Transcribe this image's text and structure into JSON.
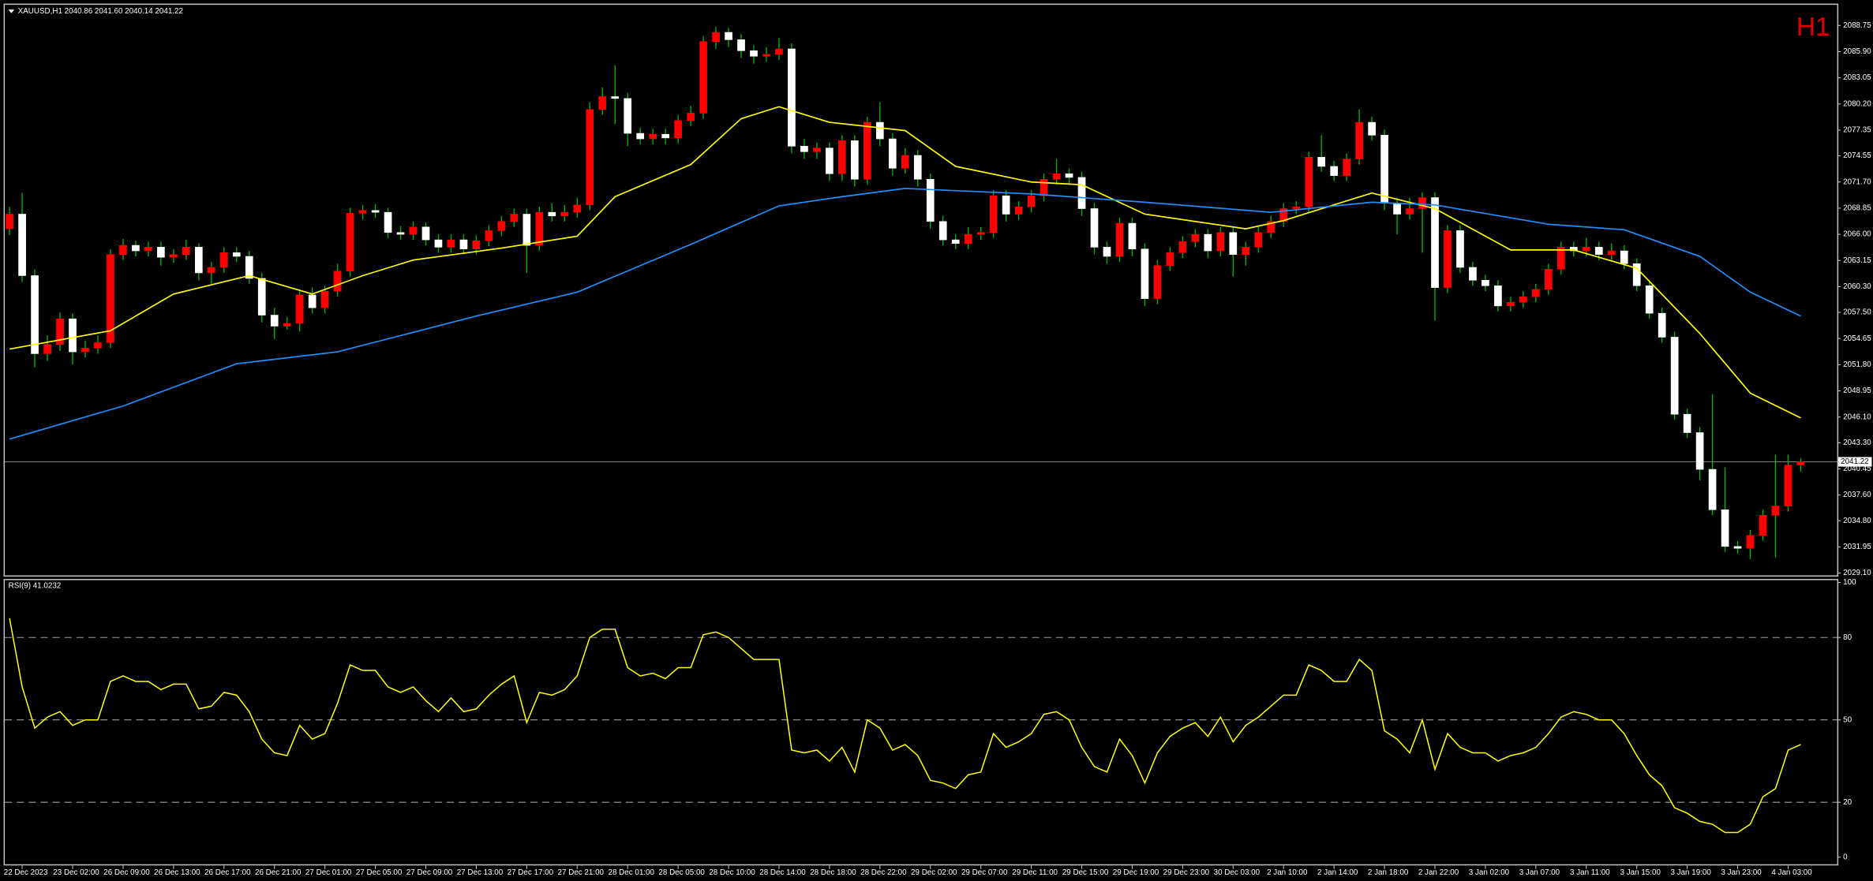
{
  "chart_data": {
    "type": "candlestick",
    "title": "XAUUSD,H1 2040.86 2041.60 2040.14 2041.22",
    "timeframe": "H1",
    "up_color": "#ff0000",
    "down_color": "#ffffff",
    "wick_color": "#00b400",
    "bid": 2041.22,
    "ylim": [
      2028.85,
      2091.0
    ],
    "yticks": [
      2088.75,
      {
        "value": 2085.9,
        "label": "2085.90"
      },
      2083.05,
      {
        "value": 2080.2,
        "label": "2080.20"
      },
      2077.35,
      2074.55,
      {
        "value": 2071.7,
        "label": "2071.70"
      },
      2068.85,
      {
        "value": 2066,
        "label": "2066.00"
      },
      2063.15,
      {
        "value": 2060.3,
        "label": "2060.30"
      },
      {
        "value": 2057.5,
        "label": "2057.50"
      },
      2054.65,
      {
        "value": 2051.8,
        "label": "2051.80"
      },
      2048.95,
      {
        "value": 2046.1,
        "label": "2046.10"
      },
      {
        "value": 2043.3,
        "label": "2043.30"
      },
      2040.45,
      {
        "value": 2037.6,
        "label": "2037.60"
      },
      {
        "value": 2034.8,
        "label": "2034.80"
      },
      2031.95,
      {
        "value": 2029.1,
        "label": "2029.10"
      }
    ],
    "categories": [
      null,
      "22 Dec 2023",
      null,
      null,
      null,
      "23 Dec 02:00",
      null,
      null,
      null,
      "26 Dec 09:00",
      null,
      null,
      null,
      "26 Dec 13:00",
      null,
      null,
      null,
      "26 Dec 17:00",
      null,
      null,
      null,
      "26 Dec 21:00",
      null,
      null,
      null,
      "27 Dec 01:00",
      null,
      null,
      null,
      "27 Dec 05:00",
      null,
      null,
      null,
      "27 Dec 09:00",
      null,
      null,
      null,
      "27 Dec 13:00",
      null,
      null,
      null,
      "27 Dec 17:00",
      null,
      null,
      null,
      "27 Dec 21:00",
      null,
      null,
      null,
      "28 Dec 01:00",
      null,
      null,
      null,
      "28 Dec 05:00",
      null,
      null,
      null,
      "28 Dec 10:00",
      null,
      null,
      null,
      "28 Dec 14:00",
      null,
      null,
      null,
      "28 Dec 18:00",
      null,
      null,
      null,
      "28 Dec 22:00",
      null,
      null,
      null,
      "29 Dec 02:00",
      null,
      null,
      null,
      "29 Dec 07:00",
      null,
      null,
      null,
      "29 Dec 11:00",
      null,
      null,
      null,
      "29 Dec 15:00",
      null,
      null,
      null,
      "29 Dec 19:00",
      null,
      null,
      null,
      "29 Dec 23:00",
      null,
      null,
      null,
      "30 Dec 03:00",
      null,
      null,
      null,
      "2 Jan 10:00",
      null,
      null,
      null,
      "2 Jan 14:00",
      null,
      null,
      null,
      "2 Jan 18:00",
      null,
      null,
      null,
      "2 Jan 22:00",
      null,
      null,
      null,
      "3 Jan 02:00",
      null,
      null,
      null,
      "3 Jan 07:00",
      null,
      null,
      null,
      "3 Jan 11:00",
      null,
      null,
      null,
      "3 Jan 15:00",
      null,
      null,
      null,
      "3 Jan 19:00",
      null,
      null,
      null,
      "3 Jan 23:00",
      null,
      null,
      null,
      "4 Jan 03:00",
      null
    ],
    "candles": [
      [
        2066.6,
        2069,
        2065.9,
        2068.2
      ],
      [
        2068.2,
        2070.5,
        2060.8,
        2061.5
      ],
      [
        2061.5,
        2062.2,
        2051.5,
        2053
      ],
      [
        2053,
        2055,
        2052.2,
        2054
      ],
      [
        2054,
        2057.5,
        2053.3,
        2056.8
      ],
      [
        2056.8,
        2057.4,
        2051.8,
        2053.2
      ],
      [
        2053.2,
        2054.4,
        2052.6,
        2053.6
      ],
      [
        2053.6,
        2055,
        2053,
        2054.2
      ],
      [
        2054.2,
        2064.4,
        2053.6,
        2063.8
      ],
      [
        2063.8,
        2065.5,
        2063.2,
        2064.8
      ],
      [
        2064.8,
        2065.3,
        2063.6,
        2064.2
      ],
      [
        2064.2,
        2065.2,
        2063.6,
        2064.6
      ],
      [
        2064.6,
        2065.2,
        2062.6,
        2063.5
      ],
      [
        2063.5,
        2064.4,
        2062.9,
        2063.8
      ],
      [
        2063.8,
        2065.4,
        2063.2,
        2064.6
      ],
      [
        2064.6,
        2065,
        2061,
        2061.8
      ],
      [
        2061.8,
        2063,
        2060.6,
        2062.4
      ],
      [
        2062.4,
        2064.6,
        2061.8,
        2064
      ],
      [
        2064,
        2064.6,
        2063,
        2063.6
      ],
      [
        2063.6,
        2064.2,
        2060.6,
        2061.2
      ],
      [
        2061.2,
        2061.8,
        2056.4,
        2057.2
      ],
      [
        2057.2,
        2058,
        2054.6,
        2056
      ],
      [
        2056,
        2057,
        2055.6,
        2056.3
      ],
      [
        2056.3,
        2060,
        2055.4,
        2059.4
      ],
      [
        2059.4,
        2060.2,
        2057.4,
        2058
      ],
      [
        2058,
        2060.4,
        2057.4,
        2059.8
      ],
      [
        2059.8,
        2062.8,
        2059.2,
        2062
      ],
      [
        2062,
        2068.9,
        2061.4,
        2068.3
      ],
      [
        2068.3,
        2069.2,
        2067.6,
        2068.6
      ],
      [
        2068.6,
        2069.3,
        2067.8,
        2068.4
      ],
      [
        2068.4,
        2068.9,
        2065.6,
        2066.2
      ],
      [
        2066.2,
        2066.9,
        2065.4,
        2066
      ],
      [
        2066,
        2067.4,
        2065.4,
        2066.8
      ],
      [
        2066.8,
        2067.3,
        2064.8,
        2065.4
      ],
      [
        2065.4,
        2066,
        2064,
        2064.6
      ],
      [
        2064.6,
        2066,
        2064,
        2065.4
      ],
      [
        2065.4,
        2066,
        2063.8,
        2064.4
      ],
      [
        2064.4,
        2065.9,
        2063.8,
        2065.3
      ],
      [
        2065.3,
        2067,
        2064.7,
        2066.4
      ],
      [
        2066.4,
        2068,
        2065.8,
        2067.4
      ],
      [
        2067.4,
        2068.8,
        2066.8,
        2068.2
      ],
      [
        2068.2,
        2068.8,
        2061.8,
        2064.8
      ],
      [
        2064.8,
        2069,
        2064.2,
        2068.4
      ],
      [
        2068.4,
        2069.4,
        2067.4,
        2068
      ],
      [
        2068,
        2069.2,
        2067.4,
        2068.4
      ],
      [
        2068.4,
        2070,
        2067.8,
        2069.2
      ],
      [
        2069.2,
        2080.4,
        2068.6,
        2079.6
      ],
      [
        2079.6,
        2082,
        2079,
        2081
      ],
      [
        2081,
        2084.4,
        2078,
        2080.8
      ],
      [
        2080.8,
        2081.4,
        2075.6,
        2077
      ],
      [
        2077,
        2077.6,
        2075.8,
        2076.4
      ],
      [
        2076.4,
        2077.5,
        2075.8,
        2076.9
      ],
      [
        2076.9,
        2077.5,
        2075.8,
        2076.5
      ],
      [
        2076.5,
        2079,
        2075.9,
        2078.4
      ],
      [
        2078.4,
        2080,
        2077.8,
        2079.2
      ],
      [
        2079.2,
        2087.6,
        2078.6,
        2087
      ],
      [
        2087,
        2088.6,
        2086.2,
        2088
      ],
      [
        2088,
        2088.5,
        2086.4,
        2087.2
      ],
      [
        2087.2,
        2087.8,
        2085.2,
        2086
      ],
      [
        2086,
        2086.6,
        2084.6,
        2085.4
      ],
      [
        2085.4,
        2086.4,
        2084.8,
        2085.6
      ],
      [
        2085.6,
        2087.4,
        2085,
        2086.2
      ],
      [
        2086.2,
        2086.8,
        2074.8,
        2075.6
      ],
      [
        2075.6,
        2076.4,
        2074.2,
        2075
      ],
      [
        2075,
        2076,
        2074.2,
        2075.4
      ],
      [
        2075.4,
        2076,
        2071.8,
        2072.6
      ],
      [
        2072.6,
        2076.8,
        2071.8,
        2076.2
      ],
      [
        2076.2,
        2076.8,
        2071.2,
        2072
      ],
      [
        2072,
        2078.8,
        2071.4,
        2078.2
      ],
      [
        2078.2,
        2080.4,
        2075.6,
        2076.4
      ],
      [
        2076.4,
        2077,
        2072.4,
        2073.2
      ],
      [
        2073.2,
        2075.4,
        2072.6,
        2074.6
      ],
      [
        2074.6,
        2075.2,
        2071.2,
        2072
      ],
      [
        2072,
        2072.6,
        2066.6,
        2067.4
      ],
      [
        2067.4,
        2068,
        2064.8,
        2065.4
      ],
      [
        2065.4,
        2066,
        2064.4,
        2065
      ],
      [
        2065,
        2066.8,
        2064.4,
        2066
      ],
      [
        2066,
        2066.8,
        2065.4,
        2066.2
      ],
      [
        2066.2,
        2070.8,
        2065.6,
        2070.2
      ],
      [
        2070.2,
        2070.8,
        2067.4,
        2068.2
      ],
      [
        2068.2,
        2069.6,
        2067.6,
        2069
      ],
      [
        2069,
        2070.8,
        2068.4,
        2070.2
      ],
      [
        2070.2,
        2072.6,
        2069.6,
        2072
      ],
      [
        2072,
        2074.2,
        2071.4,
        2072.6
      ],
      [
        2072.6,
        2073.2,
        2071.4,
        2072.2
      ],
      [
        2072.2,
        2072.8,
        2068,
        2068.8
      ],
      [
        2068.8,
        2069.4,
        2063.8,
        2064.6
      ],
      [
        2064.6,
        2065.2,
        2062.8,
        2063.6
      ],
      [
        2063.6,
        2067.8,
        2063,
        2067.2
      ],
      [
        2067.2,
        2067.8,
        2063.6,
        2064.4
      ],
      [
        2064.4,
        2065,
        2058.2,
        2059
      ],
      [
        2059,
        2063.2,
        2058.4,
        2062.6
      ],
      [
        2062.6,
        2064.6,
        2062,
        2064
      ],
      [
        2064,
        2065.8,
        2063.4,
        2065.2
      ],
      [
        2065.2,
        2066.6,
        2064.6,
        2066
      ],
      [
        2066,
        2066.6,
        2063.4,
        2064.2
      ],
      [
        2064.2,
        2066.8,
        2063.6,
        2066.2
      ],
      [
        2066.2,
        2066.8,
        2061.4,
        2063.8
      ],
      [
        2063.8,
        2065.2,
        2062.6,
        2064.6
      ],
      [
        2064.6,
        2066.8,
        2064,
        2066.2
      ],
      [
        2066.2,
        2068,
        2065.6,
        2067.4
      ],
      [
        2067.4,
        2069.4,
        2066.8,
        2068.8
      ],
      [
        2068.8,
        2069.6,
        2068.2,
        2069
      ],
      [
        2069,
        2075,
        2068.4,
        2074.4
      ],
      [
        2074.4,
        2076.8,
        2072.8,
        2073.4
      ],
      [
        2073.4,
        2074,
        2071.8,
        2072.4
      ],
      [
        2072.4,
        2074.8,
        2071.8,
        2074.2
      ],
      [
        2074.2,
        2079.6,
        2073.6,
        2078.2
      ],
      [
        2078.2,
        2078.8,
        2076.2,
        2076.8
      ],
      [
        2076.8,
        2077.4,
        2068.6,
        2069.4
      ],
      [
        2069.4,
        2070,
        2066,
        2068.2
      ],
      [
        2068.2,
        2070,
        2067.6,
        2068.8
      ],
      [
        2068.8,
        2070.6,
        2064,
        2070
      ],
      [
        2070,
        2070.6,
        2056.6,
        2060.2
      ],
      [
        2060.2,
        2067,
        2059.6,
        2066.4
      ],
      [
        2066.4,
        2067,
        2061.8,
        2062.4
      ],
      [
        2062.4,
        2063,
        2060.4,
        2061
      ],
      [
        2061,
        2061.6,
        2059.8,
        2060.4
      ],
      [
        2060.4,
        2061,
        2057.6,
        2058.2
      ],
      [
        2058.2,
        2059.2,
        2057.6,
        2058.6
      ],
      [
        2058.6,
        2059.8,
        2058,
        2059.2
      ],
      [
        2059.2,
        2060.6,
        2058.6,
        2060
      ],
      [
        2060,
        2062.8,
        2059.4,
        2062.2
      ],
      [
        2062.2,
        2065.2,
        2061.6,
        2064.6
      ],
      [
        2064.6,
        2065.2,
        2063.6,
        2064.2
      ],
      [
        2064.2,
        2065.6,
        2063.6,
        2064.6
      ],
      [
        2064.6,
        2065.2,
        2063.2,
        2063.8
      ],
      [
        2063.8,
        2065,
        2063.2,
        2064.2
      ],
      [
        2064.2,
        2064.8,
        2062.2,
        2062.8
      ],
      [
        2062.8,
        2063.4,
        2059.8,
        2060.4
      ],
      [
        2060.4,
        2061,
        2056.8,
        2057.4
      ],
      [
        2057.4,
        2058,
        2054.2,
        2054.8
      ],
      [
        2054.8,
        2055.4,
        2045.8,
        2046.4
      ],
      [
        2046.4,
        2047,
        2043.8,
        2044.4
      ],
      [
        2044.4,
        2045,
        2039.2,
        2040.4
      ],
      [
        2040.4,
        2048.6,
        2035.4,
        2036
      ],
      [
        2036,
        2040.6,
        2031.4,
        2032
      ],
      [
        2032,
        2032.6,
        2031.2,
        2031.8
      ],
      [
        2031.8,
        2033.8,
        2030.6,
        2033.2
      ],
      [
        2033.2,
        2036,
        2032.6,
        2035.4
      ],
      [
        2035.4,
        2042,
        2030.8,
        2036.4
      ],
      [
        2036.4,
        2042,
        2035.8,
        2040.86
      ],
      [
        2040.86,
        2041.6,
        2040.14,
        2041.22
      ]
    ],
    "lines": [
      {
        "color": "#ffff00",
        "x": [
          0,
          8,
          13,
          19,
          24,
          28,
          32,
          39,
          45,
          48,
          54,
          58,
          61,
          65,
          71,
          75,
          81,
          85,
          90,
          98,
          101,
          108,
          113,
          119,
          124,
          129,
          134,
          138,
          142
        ],
        "values": [
          2053.5,
          2055.5,
          2059.5,
          2061.5,
          2059.5,
          2061.5,
          2063.2,
          2064.5,
          2065.8,
          2070.1,
          2073.6,
          2078.6,
          2079.9,
          2078.2,
          2077.3,
          2073.4,
          2071.7,
          2071.4,
          2068.2,
          2066.6,
          2067.5,
          2070.5,
          2068.8,
          2064.3,
          2064.3,
          2062.3,
          2055.2,
          2048.7,
          2046
        ]
      },
      {
        "color": "#1e90ff",
        "x": [
          0,
          9,
          18,
          26,
          37,
          45,
          54,
          61,
          66,
          71,
          81,
          90,
          100,
          108,
          113,
          122,
          128,
          134,
          138,
          142
        ],
        "values": [
          2043.7,
          2047.3,
          2051.9,
          2053.2,
          2057.1,
          2059.7,
          2064.9,
          2069.1,
          2070.1,
          2071,
          2070.4,
          2069.5,
          2068.4,
          2069.5,
          2069.2,
          2067.1,
          2066.5,
          2063.6,
          2059.7,
          2057.1
        ]
      }
    ],
    "rsi": {
      "title": "RSI(9) 41.0232",
      "color": "#ffff00",
      "ylim": [
        -3,
        101.3
      ],
      "yticks": [
        0,
        20,
        50,
        80,
        100
      ],
      "levels": [
        20,
        50,
        80
      ],
      "values": [
        87,
        62,
        47,
        51,
        53,
        48,
        50,
        50,
        64,
        66,
        64,
        64,
        61,
        63,
        63,
        54,
        55,
        60,
        59,
        53,
        43,
        38,
        37,
        48,
        43,
        45,
        56,
        70,
        68,
        68,
        62,
        60,
        62,
        57,
        53,
        58,
        53,
        54,
        59,
        63,
        66,
        49,
        60,
        59,
        61,
        66,
        80,
        83,
        83,
        69,
        66,
        67,
        65,
        69,
        69,
        81,
        82,
        80,
        76,
        72,
        72,
        72,
        39,
        38,
        39,
        35,
        40,
        31,
        50,
        47,
        39,
        41,
        37,
        28,
        27,
        25,
        30,
        31,
        45,
        40,
        42,
        45,
        52,
        53,
        50,
        40,
        33,
        31,
        43,
        37,
        27,
        38,
        44,
        47,
        49,
        44,
        51,
        42,
        48,
        51,
        55,
        59,
        59,
        70,
        68,
        64,
        64,
        72,
        68,
        46,
        43,
        38,
        50,
        32,
        45,
        40,
        38,
        38,
        35,
        37,
        38,
        40,
        45,
        51,
        53,
        52,
        50,
        50,
        45,
        37,
        30,
        26,
        18,
        16,
        13,
        12,
        9,
        9,
        12,
        22,
        25,
        39,
        41.0232
      ]
    }
  }
}
